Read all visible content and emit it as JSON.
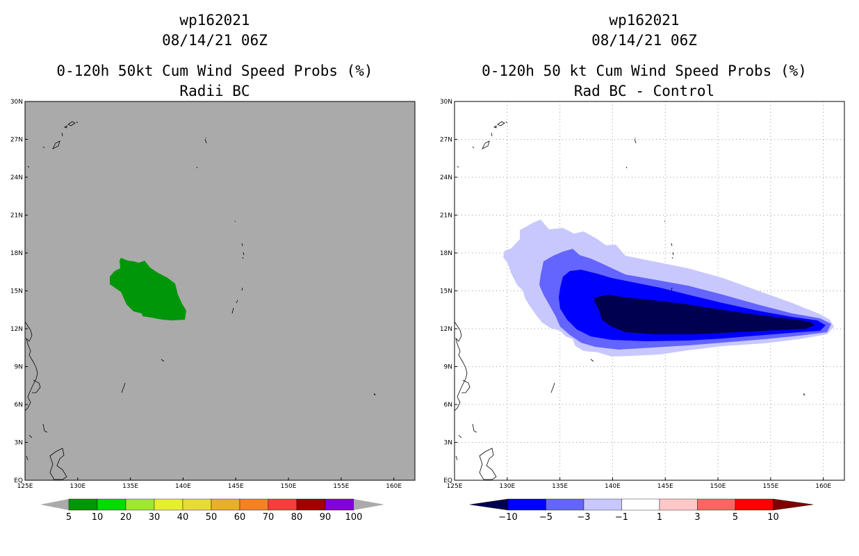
{
  "left_panel": {
    "title_line1": "wp162021",
    "title_line2": "08/14/21 06Z",
    "subtitle_line1": "0-120h 50kt Cum Wind Speed Probs (%)",
    "subtitle_line2": "Radii BC",
    "background_color": "#aaaaaa",
    "prob_color": "#00960a"
  },
  "right_panel": {
    "title_line1": "wp162021",
    "title_line2": "08/14/21 06Z",
    "subtitle_line1": "0-120h 50 kt Cum Wind Speed Probs (%)",
    "subtitle_line2": "Rad BC - Control"
  },
  "axes": {
    "lon_ticks": [
      "125E",
      "130E",
      "135E",
      "140E",
      "145E",
      "150E",
      "155E",
      "160E"
    ],
    "lat_ticks": [
      "EQ",
      "3N",
      "6N",
      "9N",
      "12N",
      "15N",
      "18N",
      "21N",
      "24N",
      "27N",
      "30N"
    ]
  },
  "left_colorbar": {
    "labels": [
      "5",
      "10",
      "20",
      "30",
      "40",
      "50",
      "60",
      "70",
      "80",
      "90",
      "100"
    ],
    "colors": [
      "#00960a",
      "#00dc00",
      "#a0e632",
      "#e6f028",
      "#e6dc32",
      "#e6af2d",
      "#f08228",
      "#fa3c3c",
      "#a00000",
      "#8200dc"
    ]
  },
  "right_colorbar": {
    "labels": [
      "-10",
      "-5",
      "-3",
      "-1",
      "1",
      "3",
      "5",
      "10"
    ],
    "colors": [
      "#000050",
      "#0000ff",
      "#6464ff",
      "#c8c8ff",
      "#ffffff",
      "#ffc8c8",
      "#ff6464",
      "#ff0000",
      "#800000"
    ]
  }
}
